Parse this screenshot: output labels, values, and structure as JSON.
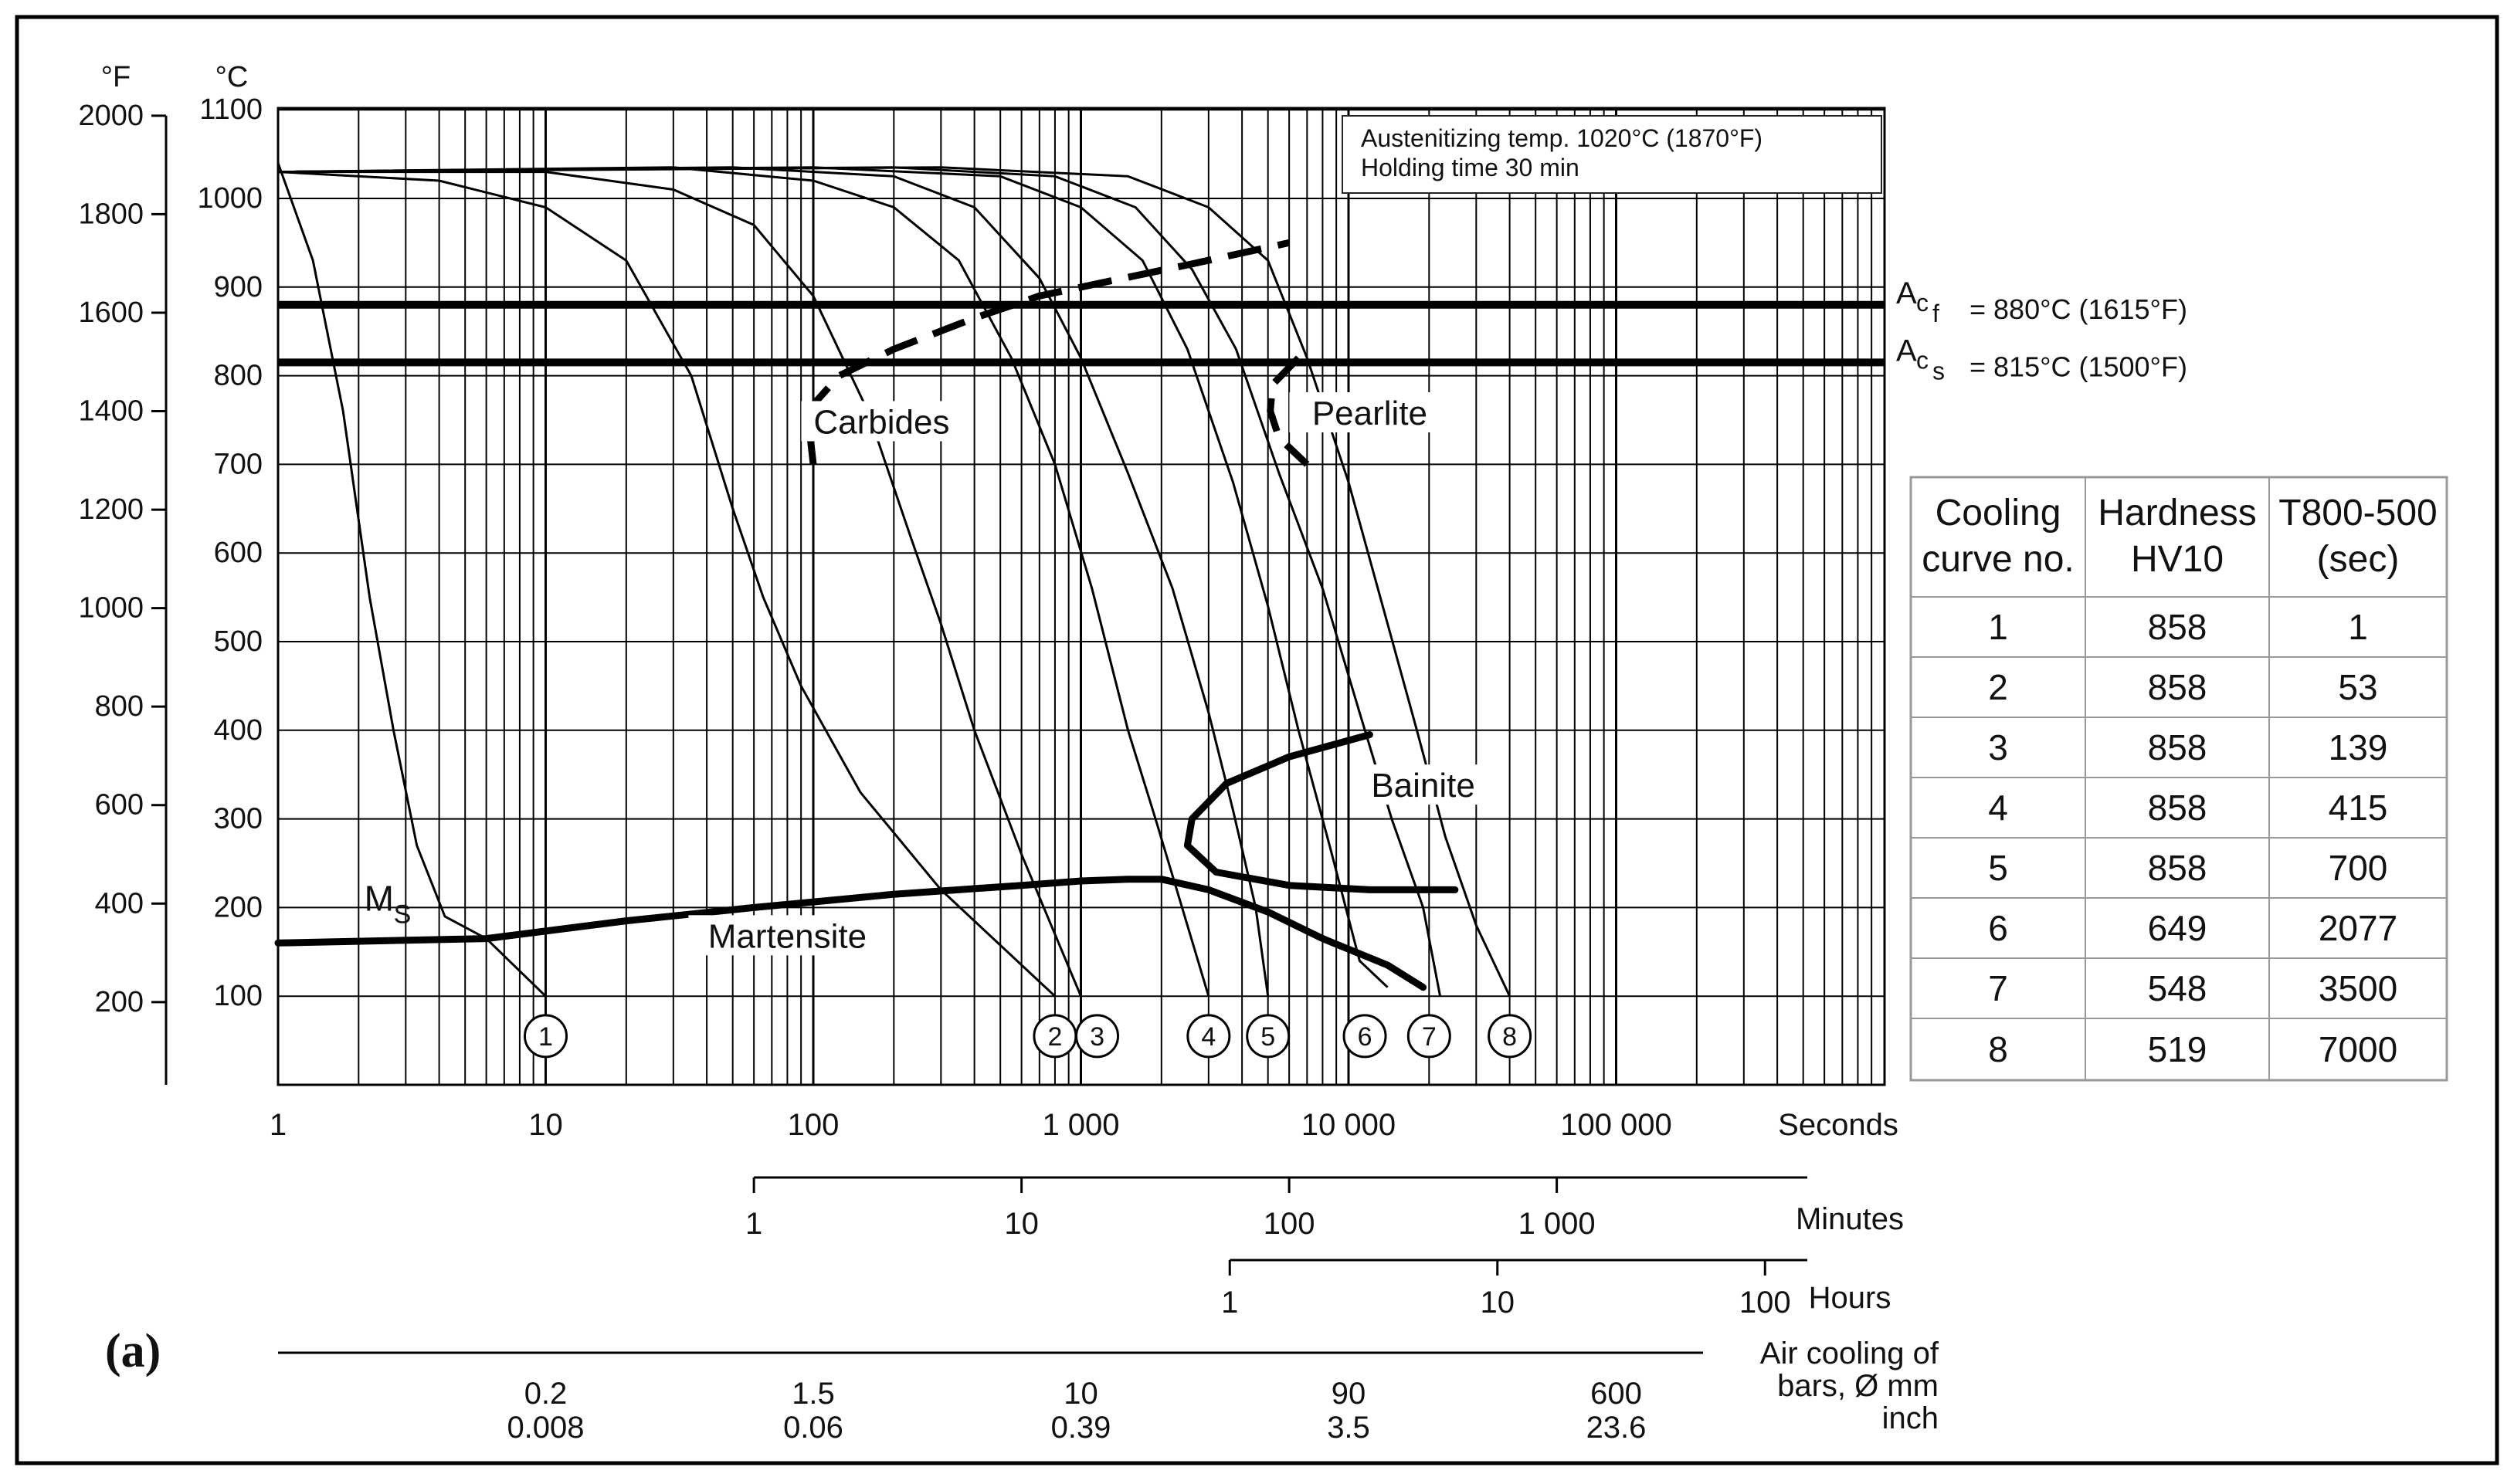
{
  "chart_data": {
    "type": "line",
    "title": "Austenitizing temp. 1020°C (1870°F)",
    "subtitle": "Holding time 30 min",
    "panel_label": "(a)",
    "axes": {
      "y_left_celsius": {
        "unit_label": "°C",
        "ticks": [
          "100",
          "200",
          "300",
          "400",
          "500",
          "600",
          "700",
          "800",
          "900",
          "1000",
          "1100"
        ],
        "ylim": [
          0,
          1100
        ]
      },
      "y_left_fahrenheit": {
        "unit_label": "°F",
        "ticks": [
          "200",
          "400",
          "600",
          "800",
          "1000",
          "1200",
          "1400",
          "1600",
          "1800",
          "2000"
        ]
      },
      "x_seconds": {
        "unit_label": "Seconds",
        "scale": "log",
        "xlim": [
          1,
          600000
        ],
        "ticks": [
          {
            "v": 1,
            "label": "1"
          },
          {
            "v": 10,
            "label": "10"
          },
          {
            "v": 100,
            "label": "100"
          },
          {
            "v": 1000,
            "label": "1 000"
          },
          {
            "v": 10000,
            "label": "10 000"
          },
          {
            "v": 100000,
            "label": "100 000"
          }
        ]
      },
      "x_minutes": {
        "unit_label": "Minutes",
        "ticks": [
          {
            "v": 60,
            "label": "1"
          },
          {
            "v": 600,
            "label": "10"
          },
          {
            "v": 6000,
            "label": "100"
          },
          {
            "v": 60000,
            "label": "1 000"
          }
        ]
      },
      "x_hours": {
        "unit_label": "Hours",
        "ticks": [
          {
            "v": 3600,
            "label": "1"
          },
          {
            "v": 36000,
            "label": "10"
          },
          {
            "v": 360000,
            "label": "100"
          }
        ]
      },
      "x_bars": {
        "unit_label_lines": [
          "Air cooling of",
          "bars, Ø mm",
          "inch"
        ],
        "ticks": [
          {
            "v": 10,
            "mm": "0.2",
            "inch": "0.008"
          },
          {
            "v": 100,
            "mm": "1.5",
            "inch": "0.06"
          },
          {
            "v": 1000,
            "mm": "10",
            "inch": "0.39"
          },
          {
            "v": 10000,
            "mm": "90",
            "inch": "3.5"
          },
          {
            "v": 100000,
            "mm": "600",
            "inch": "23.6"
          }
        ]
      }
    },
    "reference_lines": [
      {
        "name": "Ac_f",
        "label_main": "A",
        "label_sub": "c",
        "label_subsub": "f",
        "label_rest": "= 880°C (1615°F)",
        "temp_c": 880
      },
      {
        "name": "Ac_s",
        "label_main": "A",
        "label_sub": "c",
        "label_subsub": "s",
        "label_rest": "= 815°C (1500°F)",
        "temp_c": 815
      }
    ],
    "regions": [
      {
        "name": "Carbides",
        "label": "Carbides",
        "x": 180,
        "temp_c": 740
      },
      {
        "name": "Pearlite",
        "label": "Pearlite",
        "x": 12000,
        "temp_c": 750
      },
      {
        "name": "Bainite",
        "label": "Bainite",
        "x": 19000,
        "temp_c": 330
      },
      {
        "name": "Martensite",
        "label": "Martensite",
        "x": 80,
        "temp_c": 160
      },
      {
        "name": "Ms",
        "label_main": "M",
        "label_sub": "S",
        "x": 2.1,
        "temp_c": 205
      }
    ],
    "series": [
      {
        "id": "1",
        "name": "Cooling curve 1",
        "points": [
          [
            1,
            1040
          ],
          [
            1.35,
            930
          ],
          [
            1.75,
            760
          ],
          [
            2.2,
            550
          ],
          [
            2.7,
            400
          ],
          [
            3.3,
            270
          ],
          [
            4.2,
            190
          ],
          [
            6,
            165
          ],
          [
            10,
            100
          ]
        ],
        "marker": [
          10,
          55
        ]
      },
      {
        "id": "2",
        "name": "Cooling curve 2",
        "points": [
          [
            1,
            1030
          ],
          [
            4,
            1020
          ],
          [
            10,
            990
          ],
          [
            20,
            930
          ],
          [
            35,
            800
          ],
          [
            50,
            650
          ],
          [
            65,
            550
          ],
          [
            90,
            450
          ],
          [
            150,
            330
          ],
          [
            300,
            220
          ],
          [
            800,
            100
          ]
        ],
        "marker": [
          800,
          55
        ]
      },
      {
        "id": "3",
        "name": "Cooling curve 3",
        "points": [
          [
            1,
            1030
          ],
          [
            10,
            1030
          ],
          [
            30,
            1010
          ],
          [
            60,
            970
          ],
          [
            100,
            890
          ],
          [
            160,
            760
          ],
          [
            230,
            620
          ],
          [
            300,
            520
          ],
          [
            400,
            400
          ],
          [
            600,
            260
          ],
          [
            1000,
            100
          ]
        ],
        "marker": [
          1150,
          55
        ]
      },
      {
        "id": "4",
        "name": "Cooling curve 4",
        "points": [
          [
            1,
            1030
          ],
          [
            30,
            1035
          ],
          [
            100,
            1020
          ],
          [
            200,
            990
          ],
          [
            350,
            930
          ],
          [
            550,
            820
          ],
          [
            800,
            700
          ],
          [
            1100,
            560
          ],
          [
            1500,
            400
          ],
          [
            1900,
            300
          ],
          [
            2500,
            180
          ],
          [
            3000,
            100
          ]
        ],
        "marker": [
          3000,
          55
        ]
      },
      {
        "id": "5",
        "name": "Cooling curve 5",
        "points": [
          [
            1,
            1030
          ],
          [
            50,
            1035
          ],
          [
            200,
            1025
          ],
          [
            400,
            990
          ],
          [
            700,
            910
          ],
          [
            1000,
            820
          ],
          [
            1500,
            690
          ],
          [
            2200,
            560
          ],
          [
            3000,
            420
          ],
          [
            3700,
            310
          ],
          [
            4500,
            200
          ],
          [
            5000,
            100
          ]
        ],
        "marker": [
          5000,
          55
        ]
      },
      {
        "id": "6",
        "name": "Cooling curve 6",
        "points": [
          [
            1,
            1030
          ],
          [
            100,
            1035
          ],
          [
            500,
            1025
          ],
          [
            1000,
            990
          ],
          [
            1700,
            930
          ],
          [
            2500,
            830
          ],
          [
            3700,
            680
          ],
          [
            5000,
            540
          ],
          [
            6500,
            400
          ],
          [
            8500,
            270
          ],
          [
            11000,
            140
          ],
          [
            14000,
            110
          ]
        ],
        "marker": [
          11500,
          55
        ]
      },
      {
        "id": "7",
        "name": "Cooling curve 7",
        "points": [
          [
            1,
            1030
          ],
          [
            200,
            1035
          ],
          [
            800,
            1025
          ],
          [
            1600,
            990
          ],
          [
            2600,
            920
          ],
          [
            3800,
            830
          ],
          [
            5500,
            690
          ],
          [
            8000,
            560
          ],
          [
            11000,
            420
          ],
          [
            14500,
            300
          ],
          [
            19000,
            200
          ],
          [
            22000,
            100
          ]
        ],
        "marker": [
          20000,
          55
        ]
      },
      {
        "id": "8",
        "name": "Cooling curve 8",
        "points": [
          [
            1,
            1030
          ],
          [
            300,
            1035
          ],
          [
            1500,
            1025
          ],
          [
            3000,
            990
          ],
          [
            5000,
            930
          ],
          [
            7000,
            820
          ],
          [
            10000,
            680
          ],
          [
            14000,
            520
          ],
          [
            18000,
            400
          ],
          [
            23000,
            280
          ],
          [
            30000,
            180
          ],
          [
            40000,
            100
          ]
        ],
        "marker": [
          40000,
          55
        ]
      }
    ],
    "boundaries": [
      {
        "name": "carbides-start",
        "style": "dashed",
        "points": [
          [
            100,
            700
          ],
          [
            95,
            760
          ],
          [
            125,
            800
          ],
          [
            200,
            830
          ],
          [
            400,
            865
          ],
          [
            700,
            890
          ],
          [
            1200,
            905
          ],
          [
            2500,
            925
          ],
          [
            6000,
            950
          ]
        ]
      },
      {
        "name": "pearlite-nose",
        "style": "dashed",
        "points": [
          [
            6500,
            820
          ],
          [
            5200,
            790
          ],
          [
            5100,
            760
          ],
          [
            5500,
            730
          ],
          [
            7000,
            700
          ]
        ]
      },
      {
        "name": "bainite-nose",
        "style": "solid",
        "points": [
          [
            12000,
            395
          ],
          [
            6000,
            370
          ],
          [
            3500,
            340
          ],
          [
            2600,
            300
          ],
          [
            2500,
            270
          ],
          [
            3200,
            240
          ],
          [
            6000,
            225
          ],
          [
            12000,
            220
          ],
          [
            25000,
            220
          ]
        ]
      },
      {
        "name": "martensite-start",
        "style": "solid",
        "points": [
          [
            1,
            160
          ],
          [
            6,
            165
          ],
          [
            20,
            185
          ],
          [
            60,
            200
          ],
          [
            200,
            215
          ],
          [
            600,
            225
          ],
          [
            1000,
            230
          ],
          [
            1500,
            232
          ],
          [
            2000,
            232
          ],
          [
            3000,
            220
          ],
          [
            5000,
            195
          ],
          [
            8000,
            165
          ],
          [
            14000,
            135
          ],
          [
            19000,
            110
          ]
        ]
      }
    ],
    "table": {
      "headers": [
        "Cooling\ncurve no.",
        "Hardness\nHV10",
        "T800-500\n(sec)"
      ],
      "rows": [
        [
          "1",
          "858",
          "1"
        ],
        [
          "2",
          "858",
          "53"
        ],
        [
          "3",
          "858",
          "139"
        ],
        [
          "4",
          "858",
          "415"
        ],
        [
          "5",
          "858",
          "700"
        ],
        [
          "6",
          "649",
          "2077"
        ],
        [
          "7",
          "548",
          "3500"
        ],
        [
          "8",
          "519",
          "7000"
        ]
      ]
    }
  }
}
